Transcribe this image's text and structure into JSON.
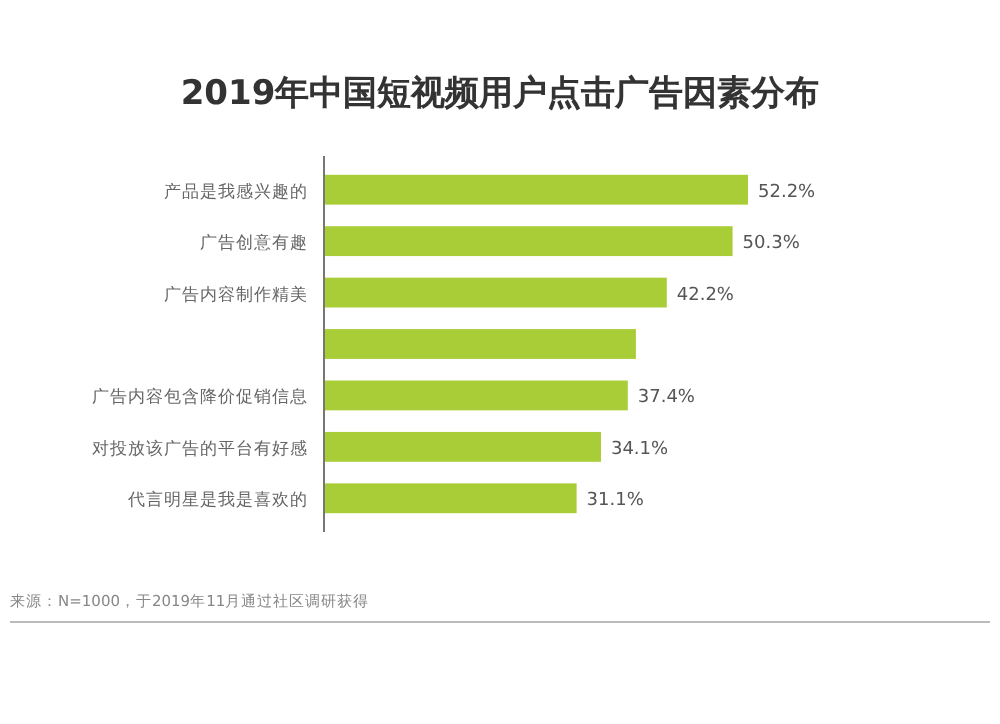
{
  "chart_data": {
    "type": "bar",
    "orientation": "horizontal",
    "title": "2019年中国短视频用户点击广告因素分布",
    "categories": [
      "产品是我感兴趣的",
      "广告创意有趣",
      "广告内容制作精美",
      null,
      "广告内容包含降价促销信息",
      "对投放该广告的平台有好感",
      "代言明星是我是喜欢的"
    ],
    "values": [
      52.2,
      50.3,
      42.2,
      38.4,
      37.4,
      34.1,
      31.1
    ],
    "value_labels": [
      "52.2%",
      "50.3%",
      "42.2%",
      null,
      "37.4%",
      "34.1%",
      "31.1%"
    ],
    "color": "#a9cd36",
    "annotations": [
      "来源：N=1000，于2019年11月通过社区调研获得"
    ]
  }
}
